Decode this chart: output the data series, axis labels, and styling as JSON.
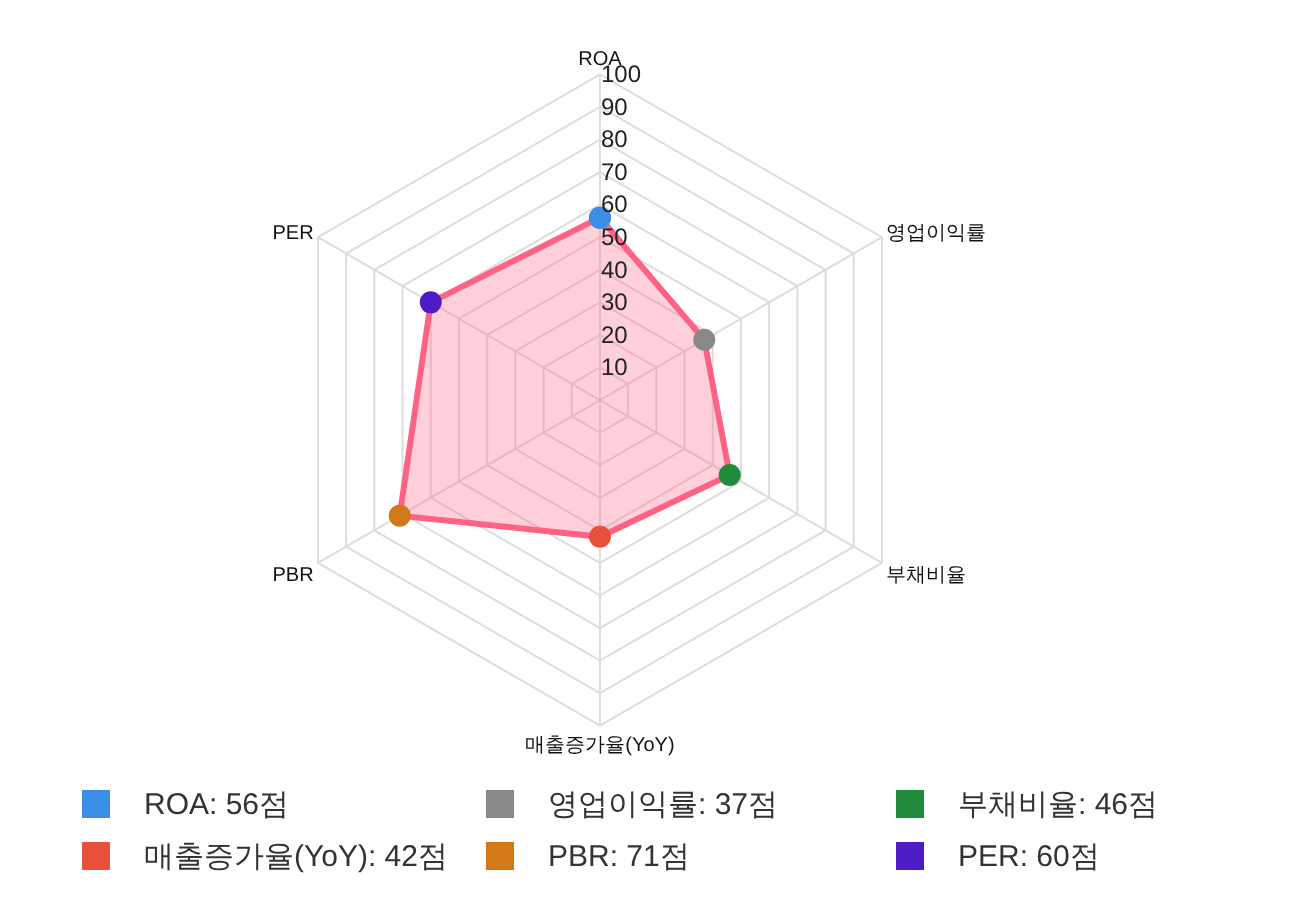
{
  "chart_data": {
    "type": "radar",
    "categories": [
      "ROA",
      "영업이익률",
      "부채비율",
      "매출증가율(YoY)",
      "PBR",
      "PER"
    ],
    "series": [
      {
        "color": "#ff6384",
        "values": [
          56,
          37,
          46,
          42,
          71,
          60
        ],
        "colors": [
          "#3a8ee6",
          "#888888",
          "#1e8c3a",
          "#e8503a",
          "#d27816",
          "#4e1cc4"
        ]
      }
    ],
    "ylim": [
      0,
      100
    ],
    "yticks": [
      10,
      20,
      30,
      40,
      50,
      60,
      70,
      80,
      90,
      100
    ],
    "grid": true,
    "marker": "circle",
    "line_style": "solid",
    "annotations": [
      "ROA: 56점",
      "영업이익률: 37점",
      "부채비율: 46점",
      "매출증가율(YoY): 42점",
      "PBR: 71점",
      "PER: 60점"
    ]
  }
}
